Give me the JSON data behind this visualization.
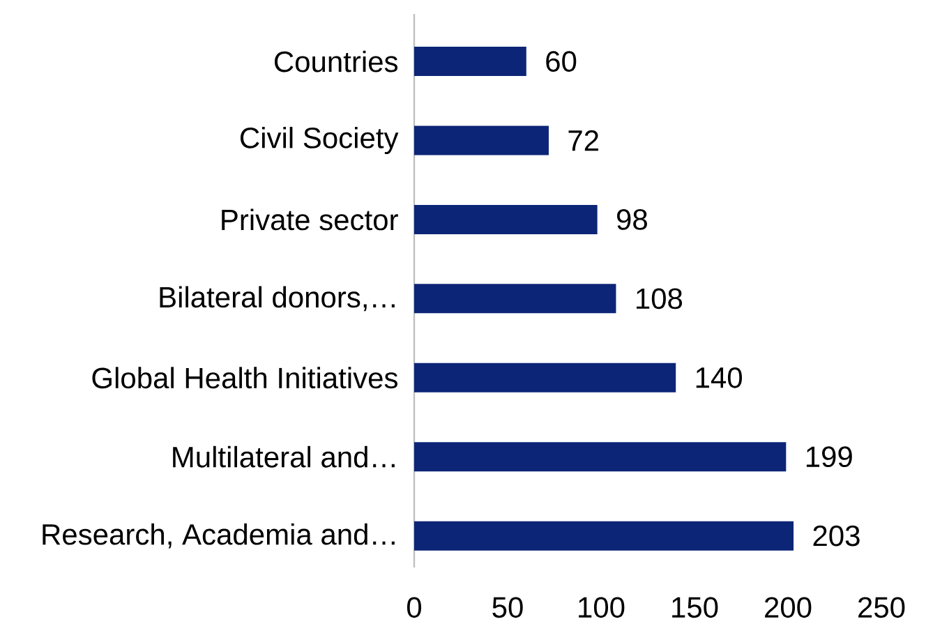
{
  "chart_data": {
    "type": "bar",
    "orientation": "horizontal",
    "categories": [
      "Countries",
      "Civil Society",
      "Private sector",
      "Bilateral donors,…",
      "Global Health Initiatives",
      "Multilateral and…",
      "Research, Academia and…"
    ],
    "values": [
      60,
      72,
      98,
      108,
      140,
      199,
      203
    ],
    "color": "#0c2577",
    "xlim": [
      0,
      250
    ],
    "xticks": [
      0,
      50,
      100,
      150,
      200,
      250
    ],
    "data_labels": true,
    "grid": false
  }
}
